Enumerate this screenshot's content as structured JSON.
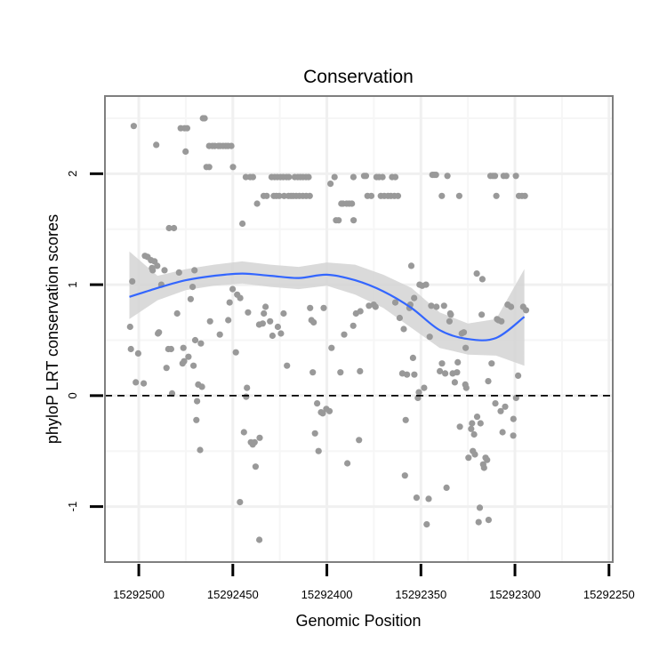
{
  "chart_data": {
    "type": "scatter",
    "title": "Conservation",
    "xlabel": "Genomic Position",
    "ylabel": "phyloP LRT conservation scores",
    "x_reversed": true,
    "xlim": [
      15292518,
      15292248
    ],
    "ylim": [
      -1.5,
      2.7
    ],
    "x_ticks": [
      15292500,
      15292450,
      15292400,
      15292350,
      15292300,
      15292250
    ],
    "y_ticks": [
      -1,
      0,
      1,
      2
    ],
    "grid": true,
    "reference_line": {
      "y": 0,
      "style": "dashed"
    },
    "point_color": "#999999",
    "smooth_color": "#3366FF",
    "ribbon_color": "#D3D3D3",
    "points": [
      [
        15292502.7,
        2.43
      ],
      [
        15292496.7,
        1.26
      ],
      [
        15292495.3,
        1.25
      ],
      [
        15292493.5,
        1.22
      ],
      [
        15292493.0,
        1.15
      ],
      [
        15292490.7,
        2.26
      ],
      [
        15292504.6,
        0.62
      ],
      [
        15292504.2,
        0.42
      ],
      [
        15292503.5,
        1.03
      ],
      [
        15292501.6,
        0.12
      ],
      [
        15292500.3,
        0.38
      ],
      [
        15292497.4,
        0.11
      ],
      [
        15292492.6,
        1.13
      ],
      [
        15292491.6,
        1.21
      ],
      [
        15292490.2,
        1.17
      ],
      [
        15292489.8,
        0.56
      ],
      [
        15292489.3,
        0.57
      ],
      [
        15292488.0,
        1.0
      ],
      [
        15292486.3,
        1.13
      ],
      [
        15292485.3,
        0.25
      ],
      [
        15292484.3,
        0.42
      ],
      [
        15292483.9,
        1.51
      ],
      [
        15292482.8,
        0.42
      ],
      [
        15292482.3,
        0.02
      ],
      [
        15292481.3,
        1.51
      ],
      [
        15292479.6,
        0.74
      ],
      [
        15292478.6,
        1.11
      ],
      [
        15292477.7,
        2.41
      ],
      [
        15292476.7,
        0.29
      ],
      [
        15292476.3,
        0.43
      ],
      [
        15292475.7,
        2.41
      ],
      [
        15292474.3,
        2.41
      ],
      [
        15292475.1,
        2.2
      ],
      [
        15292475.9,
        0.31
      ],
      [
        15292473.6,
        0.35
      ],
      [
        15292472.4,
        0.87
      ],
      [
        15292471.4,
        0.98
      ],
      [
        15292470.9,
        0.27
      ],
      [
        15292470.4,
        1.13
      ],
      [
        15292470.0,
        0.5
      ],
      [
        15292469.4,
        -0.22
      ],
      [
        15292469.0,
        -0.05
      ],
      [
        15292468.4,
        0.1
      ],
      [
        15292467.4,
        -0.49
      ],
      [
        15292467.0,
        0.47
      ],
      [
        15292466.4,
        0.08
      ],
      [
        15292465.9,
        2.5
      ],
      [
        15292465.0,
        2.5
      ],
      [
        15292464.0,
        2.06
      ],
      [
        15292462.6,
        2.06
      ],
      [
        15292462.6,
        2.25
      ],
      [
        15292460.9,
        2.25
      ],
      [
        15292459.6,
        2.25
      ],
      [
        15292457.7,
        2.25
      ],
      [
        15292456.7,
        2.25
      ],
      [
        15292455.2,
        2.25
      ],
      [
        15292453.8,
        2.25
      ],
      [
        15292452.5,
        2.25
      ],
      [
        15292450.8,
        2.25
      ],
      [
        15292449.9,
        2.06
      ],
      [
        15292462.1,
        0.67
      ],
      [
        15292456.9,
        0.55
      ],
      [
        15292452.4,
        0.68
      ],
      [
        15292451.7,
        0.84
      ],
      [
        15292450.1,
        0.96
      ],
      [
        15292448.4,
        0.39
      ],
      [
        15292447.7,
        0.91
      ],
      [
        15292446.1,
        0.88
      ],
      [
        15292444.9,
        1.55
      ],
      [
        15292444.1,
        -0.33
      ],
      [
        15292442.9,
        -0.01
      ],
      [
        15292442.5,
        0.07
      ],
      [
        15292441.9,
        0.75
      ],
      [
        15292440.4,
        -0.42
      ],
      [
        15292439.4,
        -0.44
      ],
      [
        15292438.4,
        -0.42
      ],
      [
        15292437.9,
        -0.64
      ],
      [
        15292446.2,
        -0.96
      ],
      [
        15292443.1,
        1.97
      ],
      [
        15292440.8,
        1.97
      ],
      [
        15292439.3,
        1.97
      ],
      [
        15292437.1,
        1.73
      ],
      [
        15292435.9,
        -1.3
      ],
      [
        15292436.0,
        0.64
      ],
      [
        15292434.1,
        0.65
      ],
      [
        15292433.5,
        0.74
      ],
      [
        15292432.6,
        0.8
      ],
      [
        15292428.9,
        0.54
      ],
      [
        15292430.2,
        0.67
      ],
      [
        15292435.7,
        -0.38
      ],
      [
        15292433.6,
        1.8
      ],
      [
        15292432.0,
        1.8
      ],
      [
        15292429.4,
        1.97
      ],
      [
        15292427.8,
        1.97
      ],
      [
        15292426.3,
        1.97
      ],
      [
        15292424.7,
        1.97
      ],
      [
        15292423.2,
        1.97
      ],
      [
        15292421.5,
        1.97
      ],
      [
        15292420.2,
        1.97
      ],
      [
        15292428.2,
        1.8
      ],
      [
        15292426.9,
        1.8
      ],
      [
        15292425.3,
        1.8
      ],
      [
        15292422.7,
        1.8
      ],
      [
        15292420.4,
        1.8
      ],
      [
        15292419.1,
        1.8
      ],
      [
        15292426.1,
        0.62
      ],
      [
        15292424.4,
        0.56
      ],
      [
        15292423.0,
        0.74
      ],
      [
        15292421.2,
        0.27
      ],
      [
        15292417.1,
        1.97
      ],
      [
        15292415.5,
        1.97
      ],
      [
        15292414.1,
        1.97
      ],
      [
        15292412.7,
        1.97
      ],
      [
        15292411.1,
        1.97
      ],
      [
        15292409.7,
        1.97
      ],
      [
        15292417.9,
        1.8
      ],
      [
        15292416.3,
        1.8
      ],
      [
        15292414.6,
        1.8
      ],
      [
        15292412.8,
        1.8
      ],
      [
        15292411.0,
        1.8
      ],
      [
        15292409.1,
        1.8
      ],
      [
        15292408.9,
        0.79
      ],
      [
        15292408.2,
        0.68
      ],
      [
        15292407.5,
        0.21
      ],
      [
        15292407.0,
        0.66
      ],
      [
        15292406.3,
        -0.34
      ],
      [
        15292405.2,
        -0.07
      ],
      [
        15292404.4,
        -0.5
      ],
      [
        15292403.1,
        -0.15
      ],
      [
        15292402.2,
        -0.16
      ],
      [
        15292401.7,
        0.79
      ],
      [
        15292400.3,
        -0.12
      ],
      [
        15292398.6,
        -0.14
      ],
      [
        15292398.1,
        1.91
      ],
      [
        15292397.5,
        0.43
      ],
      [
        15292395.9,
        1.97
      ],
      [
        15292395.1,
        1.58
      ],
      [
        15292393.8,
        1.58
      ],
      [
        15292392.3,
        1.73
      ],
      [
        15292391.4,
        1.73
      ],
      [
        15292389.5,
        1.73
      ],
      [
        15292388.1,
        1.73
      ],
      [
        15292386.7,
        1.73
      ],
      [
        15292385.8,
        1.58
      ],
      [
        15292392.8,
        0.21
      ],
      [
        15292390.8,
        0.55
      ],
      [
        15292389.1,
        -0.61
      ],
      [
        15292386.0,
        0.63
      ],
      [
        15292384.5,
        0.74
      ],
      [
        15292382.9,
        -0.4
      ],
      [
        15292382.4,
        0.22
      ],
      [
        15292382.2,
        0.76
      ],
      [
        15292385.9,
        1.97
      ],
      [
        15292380.2,
        1.98
      ],
      [
        15292379.2,
        1.98
      ],
      [
        15292378.4,
        1.8
      ],
      [
        15292376.4,
        1.8
      ],
      [
        15292377.6,
        0.81
      ],
      [
        15292375.1,
        0.82
      ],
      [
        15292374.1,
        0.8
      ],
      [
        15292373.6,
        1.97
      ],
      [
        15292372.2,
        1.97
      ],
      [
        15292370.4,
        1.97
      ],
      [
        15292371.3,
        1.8
      ],
      [
        15292369.5,
        1.8
      ],
      [
        15292367.5,
        1.8
      ],
      [
        15292366.0,
        1.8
      ],
      [
        15292365.3,
        1.97
      ],
      [
        15292363.6,
        1.97
      ],
      [
        15292364.1,
        1.8
      ],
      [
        15292362.2,
        1.8
      ],
      [
        15292363.6,
        0.84
      ],
      [
        15292361.3,
        0.7
      ],
      [
        15292359.9,
        0.2
      ],
      [
        15292359.1,
        0.6
      ],
      [
        15292358.5,
        -0.72
      ],
      [
        15292358.1,
        -0.22
      ],
      [
        15292357.4,
        0.19
      ],
      [
        15292356.1,
        0.79
      ],
      [
        15292355.6,
        0.82
      ],
      [
        15292355.1,
        1.17
      ],
      [
        15292354.2,
        0.34
      ],
      [
        15292353.6,
        0.88
      ],
      [
        15292353.5,
        0.19
      ],
      [
        15292352.3,
        -0.92
      ],
      [
        15292351.6,
        -0.02
      ],
      [
        15292351.1,
        0.03
      ],
      [
        15292350.7,
        1.0
      ],
      [
        15292349.3,
        0.99
      ],
      [
        15292348.3,
        0.07
      ],
      [
        15292347.3,
        1.0
      ],
      [
        15292346.9,
        -1.16
      ],
      [
        15292345.9,
        -0.93
      ],
      [
        15292345.3,
        0.53
      ],
      [
        15292344.5,
        0.81
      ],
      [
        15292343.9,
        1.99
      ],
      [
        15292343.0,
        1.99
      ],
      [
        15292342.0,
        1.99
      ],
      [
        15292341.7,
        0.8
      ],
      [
        15292339.9,
        0.22
      ],
      [
        15292338.9,
        1.8
      ],
      [
        15292338.8,
        0.29
      ],
      [
        15292337.7,
        0.81
      ],
      [
        15292337.1,
        0.2
      ],
      [
        15292336.4,
        -0.83
      ],
      [
        15292335.9,
        1.98
      ],
      [
        15292334.8,
        0.67
      ],
      [
        15292334.4,
        0.74
      ],
      [
        15292334.1,
        0.73
      ],
      [
        15292333.1,
        0.2
      ],
      [
        15292332.0,
        0.12
      ],
      [
        15292330.8,
        0.21
      ],
      [
        15292330.4,
        0.3
      ],
      [
        15292329.6,
        1.8
      ],
      [
        15292329.3,
        -0.28
      ],
      [
        15292328.3,
        0.56
      ],
      [
        15292327.2,
        0.57
      ],
      [
        15292326.4,
        0.1
      ],
      [
        15292325.9,
        0.07
      ],
      [
        15292326.2,
        0.43
      ],
      [
        15292324.7,
        -0.56
      ],
      [
        15292323.3,
        -0.3
      ],
      [
        15292322.8,
        -0.25
      ],
      [
        15292322.4,
        -0.5
      ],
      [
        15292321.7,
        -0.35
      ],
      [
        15292321.3,
        -0.53
      ],
      [
        15292320.3,
        1.1
      ],
      [
        15292320.1,
        -0.19
      ],
      [
        15292319.3,
        -1.14
      ],
      [
        15292318.7,
        -1.01
      ],
      [
        15292318.3,
        -0.25
      ],
      [
        15292317.7,
        0.73
      ],
      [
        15292317.3,
        1.05
      ],
      [
        15292316.9,
        -0.62
      ],
      [
        15292316.4,
        -0.65
      ],
      [
        15292315.6,
        -0.56
      ],
      [
        15292314.8,
        -0.58
      ],
      [
        15292314.2,
        0.13
      ],
      [
        15292314.0,
        -1.12
      ],
      [
        15292313.0,
        1.98
      ],
      [
        15292312.4,
        0.29
      ],
      [
        15292311.7,
        1.98
      ],
      [
        15292310.6,
        1.98
      ],
      [
        15292310.4,
        -0.07
      ],
      [
        15292309.9,
        1.8
      ],
      [
        15292309.5,
        0.69
      ],
      [
        15292308.8,
        0.68
      ],
      [
        15292307.6,
        -0.14
      ],
      [
        15292307.2,
        0.67
      ],
      [
        15292306.6,
        -0.33
      ],
      [
        15292306.0,
        1.98
      ],
      [
        15292305.2,
        -0.1
      ],
      [
        15292304.6,
        1.98
      ],
      [
        15292303.9,
        0.82
      ],
      [
        15292302.1,
        0.8
      ],
      [
        15292300.9,
        -0.36
      ],
      [
        15292300.8,
        -0.21
      ],
      [
        15292299.5,
        1.98
      ],
      [
        15292299.4,
        -0.02
      ],
      [
        15292298.3,
        0.18
      ],
      [
        15292297.9,
        1.8
      ],
      [
        15292296.3,
        1.8
      ],
      [
        15292295.6,
        0.8
      ],
      [
        15292294.7,
        1.8
      ],
      [
        15292294.1,
        0.77
      ]
    ],
    "smooth": {
      "x": [
        15292505,
        15292490,
        15292475,
        15292460,
        15292445,
        15292430,
        15292415,
        15292400,
        15292385,
        15292370,
        15292355,
        15292340,
        15292325,
        15292310,
        15292295
      ],
      "y": [
        0.89,
        0.97,
        1.04,
        1.08,
        1.1,
        1.08,
        1.06,
        1.09,
        1.04,
        0.94,
        0.79,
        0.59,
        0.51,
        0.52,
        0.71
      ],
      "lower": [
        0.69,
        0.86,
        0.95,
        0.99,
        1.01,
        0.98,
        0.96,
        0.99,
        0.91,
        0.79,
        0.61,
        0.43,
        0.37,
        0.36,
        0.27
      ],
      "upper": [
        1.3,
        1.08,
        1.14,
        1.18,
        1.21,
        1.18,
        1.16,
        1.2,
        1.18,
        1.09,
        0.97,
        0.75,
        0.65,
        0.69,
        1.14
      ]
    }
  }
}
